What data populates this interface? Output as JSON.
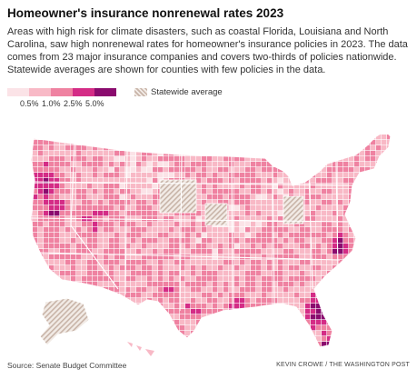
{
  "title": "Homeowner's insurance nonrenewal rates 2023",
  "description": "Areas with high risk for climate disasters, such as coastal Florida, Louisiana and North Carolina, saw high nonrenewal rates for homeowner's insurance policies in 2023. The data comes from 23 major insurance companies and covers two-thirds of policies nationwide. Statewide averages are shown for counties with few policies in the data.",
  "legend": {
    "ticks": [
      "0.5%",
      "1.0%",
      "2.5%",
      "5.0%"
    ],
    "colors": [
      "#fbe3e7",
      "#f8b9c6",
      "#ef82a1",
      "#d42c86",
      "#8a0b6e"
    ],
    "statewide_label": "Statewide average",
    "hatch_color": "#c8b4a8"
  },
  "colors": {
    "outline": "#ffffff",
    "state_border": "#ffffff"
  },
  "source": "Source: Senate Budget Committee",
  "credit": "KEVIN CROWE / THE WASHINGTON POST"
}
